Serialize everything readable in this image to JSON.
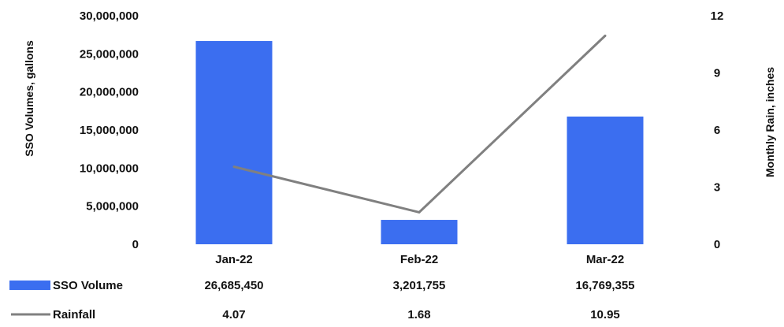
{
  "chart_data": {
    "type": "bar",
    "categories": [
      "Jan-22",
      "Feb-22",
      "Mar-22"
    ],
    "series": [
      {
        "name": "SSO Volume",
        "type": "bar",
        "axis": "left",
        "color": "#3b6ef0",
        "values": [
          26685450,
          3201755,
          16769355
        ],
        "labels": [
          "26,685,450",
          "3,201,755",
          "16,769,355"
        ]
      },
      {
        "name": "Rainfall",
        "type": "line",
        "axis": "right",
        "color": "#808080",
        "values": [
          4.07,
          1.68,
          10.95
        ],
        "labels": [
          "4.07",
          "1.68",
          "10.95"
        ]
      }
    ],
    "ylabel": "SSO Volumes, gallons",
    "ylim": [
      0,
      30000000
    ],
    "yticks": [
      "30,000,000",
      "25,000,000",
      "20,000,000",
      "15,000,000",
      "10,000,000",
      "5,000,000",
      "0"
    ],
    "y2label": "Monthly Rain, inches",
    "y2lim": [
      0,
      12
    ],
    "y2ticks": [
      "12",
      "9",
      "6",
      "3",
      "0"
    ],
    "grid": false,
    "legend": "data-table-left"
  }
}
